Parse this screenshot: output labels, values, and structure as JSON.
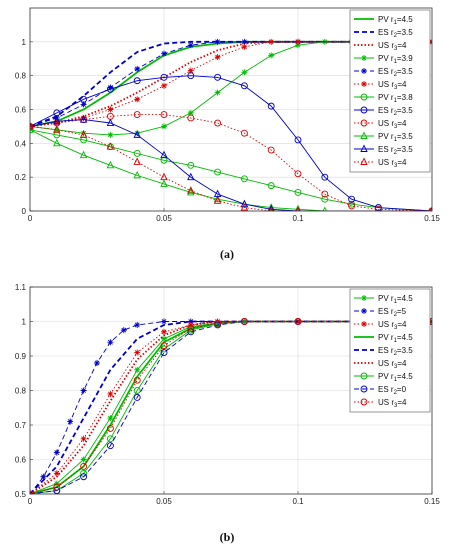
{
  "chart_data": [
    {
      "type": "line",
      "caption": "(a)",
      "xlim": [
        0,
        0.15
      ],
      "ylim": [
        0,
        1.2
      ],
      "xticks": [
        "0",
        "0.05",
        "0.1",
        "0.15"
      ],
      "yticks": [
        "0",
        "0.2",
        "0.4",
        "0.6",
        "0.8",
        "1"
      ],
      "grid": true,
      "legend_position": "top-right",
      "series": [
        {
          "name": "PV r1=4.5",
          "label_prefix": "PV r",
          "label_sub": "1",
          "label_suffix": "=4.5",
          "color": "#00bb00",
          "style": "solid",
          "marker": "none",
          "x": [
            0,
            0.01,
            0.02,
            0.03,
            0.04,
            0.05,
            0.06,
            0.07,
            0.08,
            0.1,
            0.15
          ],
          "y": [
            0.5,
            0.53,
            0.6,
            0.7,
            0.82,
            0.92,
            0.97,
            0.99,
            1.0,
            1.0,
            1.0
          ]
        },
        {
          "name": "ES r2=3.5",
          "label_prefix": "ES r",
          "label_sub": "2",
          "label_suffix": "=3.5",
          "color": "#0000cc",
          "style": "dashed",
          "marker": "none",
          "x": [
            0,
            0.01,
            0.02,
            0.03,
            0.04,
            0.05,
            0.06,
            0.07,
            0.1,
            0.15
          ],
          "y": [
            0.5,
            0.56,
            0.68,
            0.82,
            0.94,
            0.99,
            1.0,
            1.0,
            1.0,
            1.0
          ]
        },
        {
          "name": "US r3=4",
          "label_prefix": "US r",
          "label_sub": "3",
          "label_suffix": "=4",
          "color": "#dd0000",
          "style": "dotted",
          "marker": "none",
          "x": [
            0,
            0.01,
            0.02,
            0.03,
            0.04,
            0.05,
            0.06,
            0.07,
            0.08,
            0.09,
            0.1,
            0.15
          ],
          "y": [
            0.5,
            0.52,
            0.56,
            0.62,
            0.7,
            0.79,
            0.88,
            0.95,
            0.99,
            1.0,
            1.0,
            1.0
          ]
        },
        {
          "name": "PV r1=3.9",
          "label_prefix": "PV r",
          "label_sub": "1",
          "label_suffix": "=3.9",
          "color": "#00bb00",
          "style": "solid",
          "marker": "asterisk",
          "x": [
            0,
            0.01,
            0.02,
            0.03,
            0.04,
            0.05,
            0.06,
            0.07,
            0.08,
            0.09,
            0.1,
            0.11,
            0.12,
            0.15
          ],
          "y": [
            0.5,
            0.48,
            0.46,
            0.45,
            0.46,
            0.5,
            0.58,
            0.7,
            0.82,
            0.92,
            0.98,
            1.0,
            1.0,
            1.0
          ]
        },
        {
          "name": "ES r2=3.5",
          "label_prefix": "ES r",
          "label_sub": "2",
          "label_suffix": "=3.5",
          "color": "#0000cc",
          "style": "dashed",
          "marker": "asterisk",
          "x": [
            0,
            0.01,
            0.02,
            0.03,
            0.04,
            0.05,
            0.06,
            0.07,
            0.08,
            0.1,
            0.15
          ],
          "y": [
            0.5,
            0.55,
            0.63,
            0.73,
            0.84,
            0.93,
            0.98,
            1.0,
            1.0,
            1.0,
            1.0
          ]
        },
        {
          "name": "US r3=4",
          "label_prefix": "US r",
          "label_sub": "3",
          "label_suffix": "=4",
          "color": "#dd0000",
          "style": "dotted",
          "marker": "asterisk",
          "x": [
            0,
            0.01,
            0.02,
            0.03,
            0.04,
            0.05,
            0.06,
            0.07,
            0.08,
            0.09,
            0.1,
            0.15
          ],
          "y": [
            0.5,
            0.52,
            0.55,
            0.6,
            0.66,
            0.74,
            0.83,
            0.91,
            0.97,
            1.0,
            1.0,
            1.0
          ]
        },
        {
          "name": "PV r1=3.8",
          "label_prefix": "PV r",
          "label_sub": "1",
          "label_suffix": "=3.8",
          "color": "#00bb00",
          "style": "solid",
          "marker": "circle",
          "x": [
            0,
            0.01,
            0.02,
            0.03,
            0.04,
            0.05,
            0.06,
            0.07,
            0.08,
            0.09,
            0.1,
            0.11,
            0.12,
            0.13,
            0.15
          ],
          "y": [
            0.48,
            0.45,
            0.42,
            0.38,
            0.34,
            0.3,
            0.27,
            0.23,
            0.19,
            0.15,
            0.11,
            0.07,
            0.04,
            0.02,
            0.0
          ]
        },
        {
          "name": "ES r2=3.5",
          "label_prefix": "ES r",
          "label_sub": "2",
          "label_suffix": "=3.5",
          "color": "#0000cc",
          "style": "solid",
          "marker": "circle",
          "x": [
            0,
            0.01,
            0.02,
            0.03,
            0.04,
            0.05,
            0.06,
            0.07,
            0.08,
            0.09,
            0.1,
            0.11,
            0.12,
            0.13,
            0.15
          ],
          "y": [
            0.5,
            0.58,
            0.66,
            0.72,
            0.77,
            0.79,
            0.8,
            0.79,
            0.74,
            0.62,
            0.42,
            0.2,
            0.07,
            0.02,
            0.0
          ]
        },
        {
          "name": "US r3=4",
          "label_prefix": "US r",
          "label_sub": "3",
          "label_suffix": "=4",
          "color": "#dd0000",
          "style": "dotted",
          "marker": "circle",
          "x": [
            0,
            0.01,
            0.02,
            0.03,
            0.04,
            0.05,
            0.06,
            0.07,
            0.08,
            0.09,
            0.1,
            0.11,
            0.12,
            0.13,
            0.15
          ],
          "y": [
            0.5,
            0.52,
            0.54,
            0.56,
            0.57,
            0.57,
            0.55,
            0.52,
            0.46,
            0.36,
            0.22,
            0.1,
            0.03,
            0.01,
            0.0
          ]
        },
        {
          "name": "PV r1=3.5",
          "label_prefix": "PV r",
          "label_sub": "1",
          "label_suffix": "=3.5",
          "color": "#00bb00",
          "style": "solid",
          "marker": "triangle",
          "x": [
            0,
            0.01,
            0.02,
            0.03,
            0.04,
            0.05,
            0.06,
            0.07,
            0.08,
            0.09,
            0.1,
            0.11,
            0.15
          ],
          "y": [
            0.48,
            0.4,
            0.33,
            0.27,
            0.21,
            0.16,
            0.11,
            0.07,
            0.04,
            0.02,
            0.01,
            0.0,
            0.0
          ]
        },
        {
          "name": "ES r2=3.5",
          "label_prefix": "ES r",
          "label_sub": "2",
          "label_suffix": "=3.5",
          "color": "#0000cc",
          "style": "solid",
          "marker": "triangle",
          "x": [
            0,
            0.01,
            0.02,
            0.03,
            0.04,
            0.05,
            0.06,
            0.07,
            0.08,
            0.09,
            0.1,
            0.15
          ],
          "y": [
            0.5,
            0.53,
            0.54,
            0.52,
            0.45,
            0.33,
            0.2,
            0.1,
            0.04,
            0.01,
            0.0,
            0.0
          ]
        },
        {
          "name": "US r3=4",
          "label_prefix": "US r",
          "label_sub": "3",
          "label_suffix": "=4",
          "color": "#dd0000",
          "style": "dotted",
          "marker": "triangle",
          "x": [
            0,
            0.01,
            0.02,
            0.03,
            0.04,
            0.05,
            0.06,
            0.07,
            0.08,
            0.09,
            0.1,
            0.15
          ],
          "y": [
            0.5,
            0.48,
            0.45,
            0.38,
            0.29,
            0.2,
            0.12,
            0.06,
            0.02,
            0.0,
            0.0,
            0.0
          ]
        }
      ]
    },
    {
      "type": "line",
      "caption": "(b)",
      "xlim": [
        0,
        0.15
      ],
      "ylim": [
        0.5,
        1.1
      ],
      "xticks": [
        "0",
        "0.05",
        "0.1",
        "0.15"
      ],
      "yticks": [
        "0.5",
        "0.6",
        "0.7",
        "0.8",
        "0.9",
        "1",
        "1.1"
      ],
      "grid": true,
      "legend_position": "top-right",
      "series": [
        {
          "name": "PV r1=4.5",
          "label_prefix": "PV r",
          "label_sub": "1",
          "label_suffix": "=4.5",
          "color": "#00bb00",
          "style": "solid",
          "marker": "asterisk",
          "x": [
            0,
            0.01,
            0.02,
            0.03,
            0.04,
            0.05,
            0.06,
            0.07,
            0.08,
            0.1,
            0.15
          ],
          "y": [
            0.5,
            0.53,
            0.6,
            0.72,
            0.86,
            0.95,
            0.985,
            0.996,
            1.0,
            1.0,
            1.0
          ]
        },
        {
          "name": "ES r2=5",
          "label_prefix": "ES r",
          "label_sub": "2",
          "label_suffix": "=5",
          "color": "#0000cc",
          "style": "dashed",
          "marker": "asterisk",
          "x": [
            0,
            0.005,
            0.01,
            0.015,
            0.02,
            0.025,
            0.03,
            0.035,
            0.04,
            0.05,
            0.06,
            0.1,
            0.15
          ],
          "y": [
            0.5,
            0.55,
            0.62,
            0.71,
            0.8,
            0.88,
            0.94,
            0.975,
            0.99,
            1.0,
            1.0,
            1.0,
            1.0
          ]
        },
        {
          "name": "US r3=4",
          "label_prefix": "US r",
          "label_sub": "3",
          "label_suffix": "=4",
          "color": "#dd0000",
          "style": "dotted",
          "marker": "asterisk",
          "x": [
            0,
            0.01,
            0.02,
            0.03,
            0.04,
            0.05,
            0.06,
            0.07,
            0.1,
            0.15
          ],
          "y": [
            0.5,
            0.56,
            0.66,
            0.79,
            0.91,
            0.97,
            0.99,
            1.0,
            1.0,
            1.0
          ]
        },
        {
          "name": "PV r1=4.5",
          "label_prefix": "PV r",
          "label_sub": "1",
          "label_suffix": "=4.5",
          "color": "#00bb00",
          "style": "solid",
          "marker": "none",
          "x": [
            0,
            0.01,
            0.02,
            0.03,
            0.04,
            0.05,
            0.06,
            0.07,
            0.08,
            0.1,
            0.15
          ],
          "y": [
            0.5,
            0.52,
            0.58,
            0.7,
            0.84,
            0.94,
            0.98,
            0.995,
            1.0,
            1.0,
            1.0
          ]
        },
        {
          "name": "ES r2=3.5",
          "label_prefix": "ES r",
          "label_sub": "2",
          "label_suffix": "=3.5",
          "color": "#0000cc",
          "style": "dashed",
          "marker": "none",
          "x": [
            0,
            0.01,
            0.02,
            0.03,
            0.04,
            0.05,
            0.06,
            0.1,
            0.15
          ],
          "y": [
            0.5,
            0.58,
            0.72,
            0.86,
            0.95,
            0.99,
            1.0,
            1.0,
            1.0
          ]
        },
        {
          "name": "US r3=4",
          "label_prefix": "US r",
          "label_sub": "3",
          "label_suffix": "=4",
          "color": "#dd0000",
          "style": "dotted",
          "marker": "none",
          "x": [
            0,
            0.01,
            0.02,
            0.03,
            0.04,
            0.05,
            0.06,
            0.07,
            0.1,
            0.15
          ],
          "y": [
            0.5,
            0.55,
            0.64,
            0.77,
            0.89,
            0.96,
            0.99,
            1.0,
            1.0,
            1.0
          ]
        },
        {
          "name": "PV r1=4.5",
          "label_prefix": "PV r",
          "label_sub": "1",
          "label_suffix": "=4.5",
          "color": "#00bb00",
          "style": "solid",
          "marker": "circle",
          "x": [
            0,
            0.01,
            0.02,
            0.03,
            0.04,
            0.05,
            0.06,
            0.07,
            0.08,
            0.1,
            0.15
          ],
          "y": [
            0.5,
            0.51,
            0.56,
            0.66,
            0.8,
            0.92,
            0.975,
            0.993,
            1.0,
            1.0,
            1.0
          ]
        },
        {
          "name": "ES r2=0",
          "label_prefix": "ES r",
          "label_sub": "2",
          "label_suffix": "=0",
          "color": "#0000cc",
          "style": "dashed",
          "marker": "circle",
          "x": [
            0,
            0.01,
            0.02,
            0.03,
            0.04,
            0.05,
            0.06,
            0.07,
            0.08,
            0.1,
            0.15
          ],
          "y": [
            0.5,
            0.51,
            0.55,
            0.64,
            0.78,
            0.91,
            0.97,
            0.99,
            1.0,
            1.0,
            1.0
          ]
        },
        {
          "name": "US r3=4",
          "label_prefix": "US r",
          "label_sub": "3",
          "label_suffix": "=4",
          "color": "#dd0000",
          "style": "dotted",
          "marker": "circle",
          "x": [
            0,
            0.01,
            0.02,
            0.03,
            0.04,
            0.05,
            0.06,
            0.07,
            0.08,
            0.1,
            0.15
          ],
          "y": [
            0.5,
            0.52,
            0.58,
            0.69,
            0.83,
            0.93,
            0.98,
            0.995,
            1.0,
            1.0,
            1.0
          ]
        }
      ]
    }
  ]
}
